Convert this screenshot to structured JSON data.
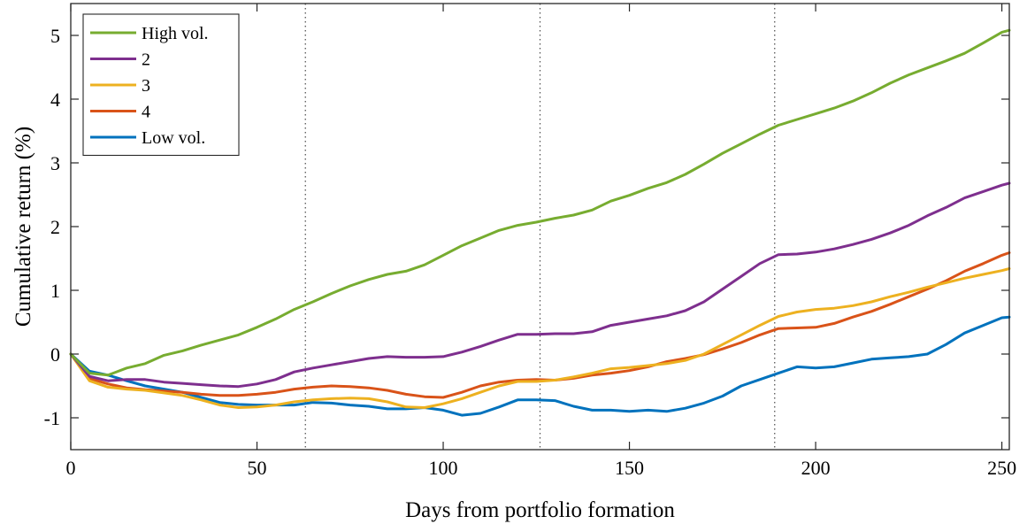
{
  "chart_data": {
    "type": "line",
    "xlabel": "Days from portfolio formation",
    "ylabel": "Cumulative return (%)",
    "xlim": [
      0,
      252
    ],
    "ylim": [
      -1.5,
      5.5
    ],
    "xticks": [
      0,
      50,
      100,
      150,
      200,
      250
    ],
    "yticks": [
      -1,
      0,
      1,
      2,
      3,
      4,
      5
    ],
    "xtick_labels": [
      "0",
      "50",
      "100",
      "150",
      "200",
      "250"
    ],
    "ytick_labels": [
      "-1",
      "0",
      "1",
      "2",
      "3",
      "4",
      "5"
    ],
    "vertical_lines": [
      63,
      126,
      189
    ],
    "grid": false,
    "legend_position": "top-left",
    "series": [
      {
        "name": "High vol.",
        "color": "#77ac30",
        "points": [
          [
            0,
            0
          ],
          [
            5,
            -0.3
          ],
          [
            10,
            -0.33
          ],
          [
            15,
            -0.22
          ],
          [
            20,
            -0.15
          ],
          [
            25,
            -0.02
          ],
          [
            30,
            0.05
          ],
          [
            35,
            0.14
          ],
          [
            40,
            0.22
          ],
          [
            45,
            0.3
          ],
          [
            50,
            0.42
          ],
          [
            55,
            0.55
          ],
          [
            60,
            0.7
          ],
          [
            65,
            0.82
          ],
          [
            70,
            0.95
          ],
          [
            75,
            1.07
          ],
          [
            80,
            1.17
          ],
          [
            85,
            1.25
          ],
          [
            90,
            1.3
          ],
          [
            95,
            1.4
          ],
          [
            100,
            1.55
          ],
          [
            105,
            1.7
          ],
          [
            110,
            1.82
          ],
          [
            115,
            1.94
          ],
          [
            120,
            2.02
          ],
          [
            125,
            2.07
          ],
          [
            130,
            2.13
          ],
          [
            135,
            2.18
          ],
          [
            140,
            2.26
          ],
          [
            145,
            2.4
          ],
          [
            150,
            2.49
          ],
          [
            155,
            2.6
          ],
          [
            160,
            2.69
          ],
          [
            165,
            2.82
          ],
          [
            170,
            2.98
          ],
          [
            175,
            3.15
          ],
          [
            180,
            3.3
          ],
          [
            185,
            3.45
          ],
          [
            190,
            3.59
          ],
          [
            195,
            3.68
          ],
          [
            200,
            3.77
          ],
          [
            205,
            3.86
          ],
          [
            210,
            3.97
          ],
          [
            215,
            4.1
          ],
          [
            220,
            4.25
          ],
          [
            225,
            4.38
          ],
          [
            230,
            4.49
          ],
          [
            235,
            4.6
          ],
          [
            240,
            4.72
          ],
          [
            245,
            4.88
          ],
          [
            250,
            5.05
          ],
          [
            252,
            5.08
          ]
        ]
      },
      {
        "name": "2",
        "color": "#7e2f8e",
        "points": [
          [
            0,
            0
          ],
          [
            5,
            -0.35
          ],
          [
            10,
            -0.42
          ],
          [
            15,
            -0.4
          ],
          [
            20,
            -0.4
          ],
          [
            25,
            -0.44
          ],
          [
            30,
            -0.46
          ],
          [
            35,
            -0.48
          ],
          [
            40,
            -0.5
          ],
          [
            45,
            -0.51
          ],
          [
            50,
            -0.47
          ],
          [
            55,
            -0.4
          ],
          [
            60,
            -0.28
          ],
          [
            65,
            -0.22
          ],
          [
            70,
            -0.17
          ],
          [
            75,
            -0.12
          ],
          [
            80,
            -0.07
          ],
          [
            85,
            -0.04
          ],
          [
            90,
            -0.05
          ],
          [
            95,
            -0.05
          ],
          [
            100,
            -0.04
          ],
          [
            105,
            0.03
          ],
          [
            110,
            0.12
          ],
          [
            115,
            0.22
          ],
          [
            120,
            0.31
          ],
          [
            125,
            0.31
          ],
          [
            130,
            0.32
          ],
          [
            135,
            0.32
          ],
          [
            140,
            0.35
          ],
          [
            145,
            0.45
          ],
          [
            150,
            0.5
          ],
          [
            155,
            0.55
          ],
          [
            160,
            0.6
          ],
          [
            165,
            0.68
          ],
          [
            170,
            0.82
          ],
          [
            175,
            1.02
          ],
          [
            180,
            1.22
          ],
          [
            185,
            1.42
          ],
          [
            190,
            1.56
          ],
          [
            195,
            1.57
          ],
          [
            200,
            1.6
          ],
          [
            205,
            1.65
          ],
          [
            210,
            1.72
          ],
          [
            215,
            1.8
          ],
          [
            220,
            1.9
          ],
          [
            225,
            2.02
          ],
          [
            230,
            2.17
          ],
          [
            235,
            2.3
          ],
          [
            240,
            2.45
          ],
          [
            245,
            2.55
          ],
          [
            250,
            2.65
          ],
          [
            252,
            2.68
          ]
        ]
      },
      {
        "name": "3",
        "color": "#edb120",
        "points": [
          [
            0,
            0
          ],
          [
            5,
            -0.42
          ],
          [
            10,
            -0.52
          ],
          [
            15,
            -0.55
          ],
          [
            20,
            -0.57
          ],
          [
            25,
            -0.61
          ],
          [
            30,
            -0.65
          ],
          [
            35,
            -0.72
          ],
          [
            40,
            -0.8
          ],
          [
            45,
            -0.84
          ],
          [
            50,
            -0.83
          ],
          [
            55,
            -0.8
          ],
          [
            60,
            -0.75
          ],
          [
            65,
            -0.72
          ],
          [
            70,
            -0.7
          ],
          [
            75,
            -0.69
          ],
          [
            80,
            -0.7
          ],
          [
            85,
            -0.75
          ],
          [
            90,
            -0.83
          ],
          [
            95,
            -0.84
          ],
          [
            100,
            -0.78
          ],
          [
            105,
            -0.7
          ],
          [
            110,
            -0.6
          ],
          [
            115,
            -0.5
          ],
          [
            120,
            -0.43
          ],
          [
            125,
            -0.43
          ],
          [
            130,
            -0.41
          ],
          [
            135,
            -0.36
          ],
          [
            140,
            -0.3
          ],
          [
            145,
            -0.23
          ],
          [
            150,
            -0.21
          ],
          [
            155,
            -0.18
          ],
          [
            160,
            -0.15
          ],
          [
            165,
            -0.1
          ],
          [
            170,
            0.0
          ],
          [
            175,
            0.15
          ],
          [
            180,
            0.3
          ],
          [
            185,
            0.45
          ],
          [
            190,
            0.59
          ],
          [
            195,
            0.66
          ],
          [
            200,
            0.7
          ],
          [
            205,
            0.72
          ],
          [
            210,
            0.76
          ],
          [
            215,
            0.82
          ],
          [
            220,
            0.9
          ],
          [
            225,
            0.97
          ],
          [
            230,
            1.05
          ],
          [
            235,
            1.12
          ],
          [
            240,
            1.19
          ],
          [
            245,
            1.25
          ],
          [
            250,
            1.31
          ],
          [
            252,
            1.34
          ]
        ]
      },
      {
        "name": "4",
        "color": "#d95319",
        "points": [
          [
            0,
            0
          ],
          [
            5,
            -0.38
          ],
          [
            10,
            -0.47
          ],
          [
            15,
            -0.53
          ],
          [
            20,
            -0.56
          ],
          [
            25,
            -0.58
          ],
          [
            30,
            -0.6
          ],
          [
            35,
            -0.63
          ],
          [
            40,
            -0.65
          ],
          [
            45,
            -0.65
          ],
          [
            50,
            -0.63
          ],
          [
            55,
            -0.6
          ],
          [
            60,
            -0.55
          ],
          [
            65,
            -0.52
          ],
          [
            70,
            -0.5
          ],
          [
            75,
            -0.51
          ],
          [
            80,
            -0.53
          ],
          [
            85,
            -0.57
          ],
          [
            90,
            -0.63
          ],
          [
            95,
            -0.67
          ],
          [
            100,
            -0.68
          ],
          [
            105,
            -0.6
          ],
          [
            110,
            -0.5
          ],
          [
            115,
            -0.44
          ],
          [
            120,
            -0.41
          ],
          [
            125,
            -0.4
          ],
          [
            130,
            -0.41
          ],
          [
            135,
            -0.38
          ],
          [
            140,
            -0.33
          ],
          [
            145,
            -0.3
          ],
          [
            150,
            -0.26
          ],
          [
            155,
            -0.2
          ],
          [
            160,
            -0.12
          ],
          [
            165,
            -0.07
          ],
          [
            170,
            -0.01
          ],
          [
            175,
            0.08
          ],
          [
            180,
            0.18
          ],
          [
            185,
            0.3
          ],
          [
            190,
            0.4
          ],
          [
            195,
            0.41
          ],
          [
            200,
            0.42
          ],
          [
            205,
            0.48
          ],
          [
            210,
            0.58
          ],
          [
            215,
            0.67
          ],
          [
            220,
            0.78
          ],
          [
            225,
            0.9
          ],
          [
            230,
            1.02
          ],
          [
            235,
            1.15
          ],
          [
            240,
            1.3
          ],
          [
            245,
            1.42
          ],
          [
            250,
            1.55
          ],
          [
            252,
            1.59
          ]
        ]
      },
      {
        "name": "Low vol.",
        "color": "#0072bd",
        "points": [
          [
            0,
            0
          ],
          [
            5,
            -0.27
          ],
          [
            10,
            -0.33
          ],
          [
            15,
            -0.42
          ],
          [
            20,
            -0.5
          ],
          [
            25,
            -0.55
          ],
          [
            30,
            -0.6
          ],
          [
            35,
            -0.68
          ],
          [
            40,
            -0.76
          ],
          [
            45,
            -0.79
          ],
          [
            50,
            -0.8
          ],
          [
            55,
            -0.8
          ],
          [
            60,
            -0.8
          ],
          [
            65,
            -0.76
          ],
          [
            70,
            -0.77
          ],
          [
            75,
            -0.8
          ],
          [
            80,
            -0.82
          ],
          [
            85,
            -0.86
          ],
          [
            90,
            -0.86
          ],
          [
            95,
            -0.84
          ],
          [
            100,
            -0.88
          ],
          [
            105,
            -0.96
          ],
          [
            110,
            -0.93
          ],
          [
            115,
            -0.83
          ],
          [
            120,
            -0.72
          ],
          [
            125,
            -0.72
          ],
          [
            130,
            -0.73
          ],
          [
            135,
            -0.82
          ],
          [
            140,
            -0.88
          ],
          [
            145,
            -0.88
          ],
          [
            150,
            -0.9
          ],
          [
            155,
            -0.88
          ],
          [
            160,
            -0.9
          ],
          [
            165,
            -0.85
          ],
          [
            170,
            -0.77
          ],
          [
            175,
            -0.66
          ],
          [
            180,
            -0.5
          ],
          [
            185,
            -0.4
          ],
          [
            190,
            -0.3
          ],
          [
            195,
            -0.2
          ],
          [
            200,
            -0.22
          ],
          [
            205,
            -0.2
          ],
          [
            210,
            -0.14
          ],
          [
            215,
            -0.08
          ],
          [
            220,
            -0.06
          ],
          [
            225,
            -0.04
          ],
          [
            230,
            0.0
          ],
          [
            235,
            0.15
          ],
          [
            240,
            0.33
          ],
          [
            245,
            0.45
          ],
          [
            250,
            0.57
          ],
          [
            252,
            0.58
          ]
        ]
      }
    ]
  }
}
